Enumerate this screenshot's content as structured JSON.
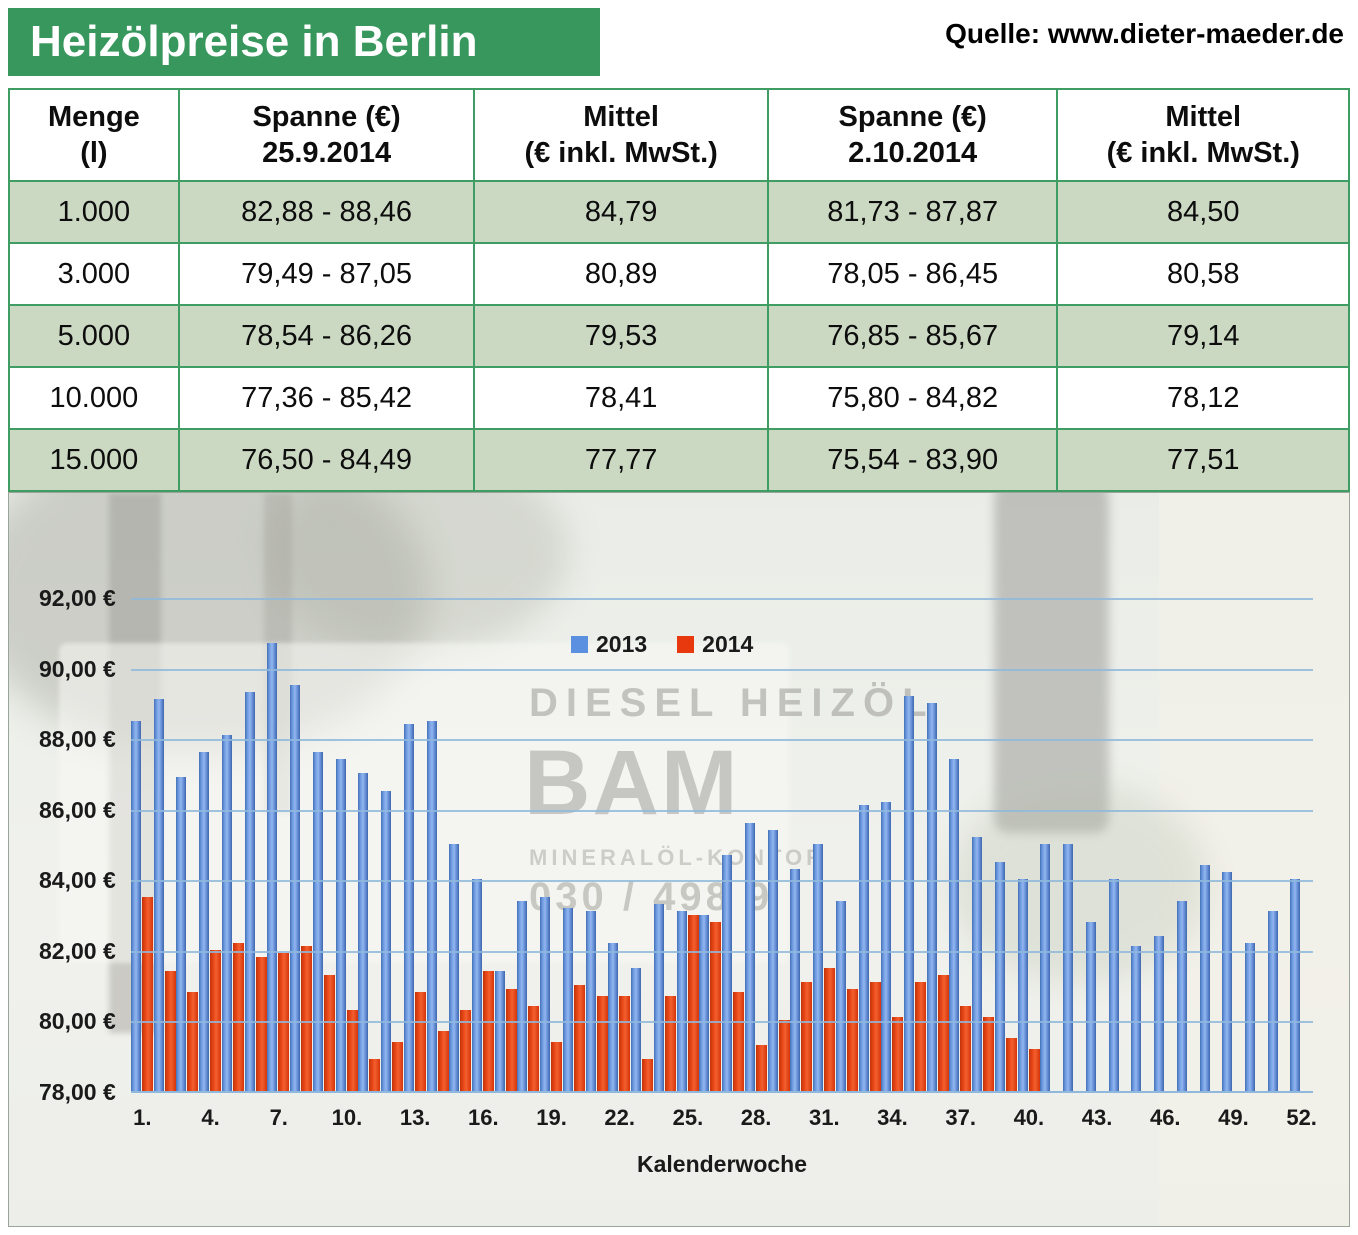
{
  "header": {
    "title": "Heizölpreise in Berlin",
    "source": "Quelle: www.dieter-maeder.de"
  },
  "table": {
    "headers": [
      "Menge\n(l)",
      "Spanne (€)\n25.9.2014",
      "Mittel\n(€ inkl. MwSt.)",
      "Spanne (€)\n2.10.2014",
      "Mittel\n(€ inkl. MwSt.)"
    ],
    "rows": [
      [
        "1.000",
        "82,88 - 88,46",
        "84,79",
        "81,73 - 87,87",
        "84,50"
      ],
      [
        "3.000",
        "79,49 - 87,05",
        "80,89",
        "78,05 - 86,45",
        "80,58"
      ],
      [
        "5.000",
        "78,54 - 86,26",
        "79,53",
        "76,85 - 85,67",
        "79,14"
      ],
      [
        "10.000",
        "77,36 - 85,42",
        "78,41",
        "75,80 - 84,82",
        "78,12"
      ],
      [
        "15.000",
        "76,50 - 84,49",
        "77,77",
        "75,54 - 83,90",
        "77,51"
      ]
    ]
  },
  "chart_data": {
    "type": "bar",
    "title": "",
    "xlabel": "Kalenderwoche",
    "ylabel": "",
    "ylim": [
      78,
      92
    ],
    "grid": true,
    "legend_position": "top-center",
    "y_ticks": [
      {
        "value": 92,
        "label": "92,00 €"
      },
      {
        "value": 90,
        "label": "90,00 €"
      },
      {
        "value": 88,
        "label": "88,00 €"
      },
      {
        "value": 86,
        "label": "86,00 €"
      },
      {
        "value": 84,
        "label": "84,00 €"
      },
      {
        "value": 82,
        "label": "82,00 €"
      },
      {
        "value": 80,
        "label": "80,00 €"
      },
      {
        "value": 78,
        "label": "78,00 €"
      }
    ],
    "x_ticks": [
      {
        "week": 1,
        "label": "1."
      },
      {
        "week": 4,
        "label": "4."
      },
      {
        "week": 7,
        "label": "7."
      },
      {
        "week": 10,
        "label": "10."
      },
      {
        "week": 13,
        "label": "13."
      },
      {
        "week": 16,
        "label": "16."
      },
      {
        "week": 19,
        "label": "19."
      },
      {
        "week": 22,
        "label": "22."
      },
      {
        "week": 25,
        "label": "25."
      },
      {
        "week": 28,
        "label": "28."
      },
      {
        "week": 31,
        "label": "31."
      },
      {
        "week": 34,
        "label": "34."
      },
      {
        "week": 37,
        "label": "37."
      },
      {
        "week": 40,
        "label": "40."
      },
      {
        "week": 43,
        "label": "43."
      },
      {
        "week": 46,
        "label": "46."
      },
      {
        "week": 49,
        "label": "49."
      },
      {
        "week": 52,
        "label": "52."
      }
    ],
    "weeks": 52,
    "series": [
      {
        "name": "2013",
        "color": "#5b8fe0",
        "values": [
          88.5,
          89.1,
          86.9,
          87.6,
          88.1,
          89.3,
          90.7,
          89.5,
          87.6,
          87.4,
          87.0,
          86.5,
          88.4,
          88.5,
          85.0,
          84.0,
          81.4,
          83.4,
          83.5,
          83.2,
          83.1,
          82.2,
          81.5,
          83.3,
          83.1,
          83.0,
          84.7,
          85.6,
          85.4,
          84.3,
          85.0,
          83.4,
          86.1,
          86.2,
          89.2,
          89.0,
          87.4,
          85.2,
          84.5,
          84.0,
          85.0,
          85.0,
          82.8,
          84.0,
          82.1,
          82.4,
          83.4,
          84.4,
          84.2,
          82.2,
          83.1,
          84.0
        ]
      },
      {
        "name": "2014",
        "color": "#e8380d",
        "values": [
          83.5,
          81.4,
          80.8,
          82.0,
          82.2,
          81.8,
          81.9,
          82.1,
          81.3,
          80.3,
          78.9,
          79.4,
          80.8,
          79.7,
          80.3,
          81.4,
          80.9,
          80.4,
          79.4,
          81.0,
          80.7,
          80.7,
          78.9,
          80.7,
          83.0,
          82.8,
          80.8,
          79.3,
          80.0,
          81.1,
          81.5,
          80.9,
          81.1,
          80.1,
          81.1,
          81.3,
          80.4,
          80.1,
          79.5,
          79.2
        ]
      }
    ]
  },
  "photo": {
    "truck_text": "DIESEL HEIZÖL",
    "truck_brand": "BAM",
    "truck_sub": "MINERALÖL-KONTOR",
    "truck_phone": "030 / 498 9"
  }
}
